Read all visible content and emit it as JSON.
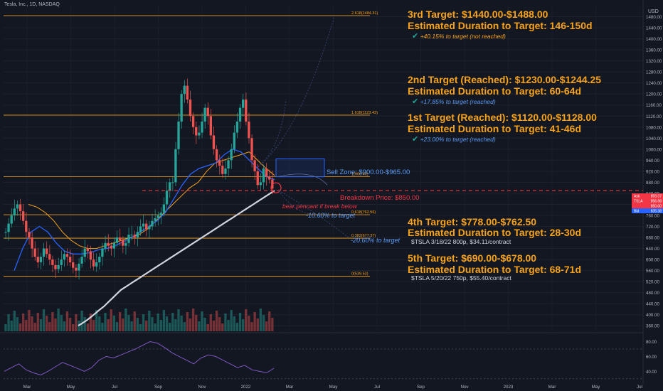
{
  "header": {
    "symbol_title": "Tesla, Inc., 1D, NASDAQ",
    "currency": "USD"
  },
  "colors": {
    "background": "#131722",
    "fib": "#f7a21b",
    "target_text": "#f7a21b",
    "check": "#26a69a",
    "sma_white": "#d1d4dc",
    "sma_blue": "#2962ff",
    "sma_orange": "#f7a21b",
    "breakdown": "#f23645",
    "sell_zone": "#2962ff",
    "rsi": "#7e57c2",
    "up": "#26a69a",
    "down": "#ef5350"
  },
  "annotations": {
    "target3_title": "3rd Target: $1440.00-$1488.00",
    "target3_duration": "Estimated Duration to Target: 146-150d",
    "target3_note": "+40.15% to target (not reached)",
    "target2_title": "2nd Target (Reached): $1230.00-$1244.25",
    "target2_duration": "Estimated Duration to Target: 60-64d",
    "target2_note": "+17.85% to target (reached)",
    "target1_title": "1st Target (Reached): $1120.00-$1128.00",
    "target1_duration": "Estimated Duration to Target: 41-46d",
    "target1_note": "+23.00% to target (reached)",
    "sell_zone": "Sell Zone: $900.00-$965.00",
    "breakdown_price": "Breakdown Price: $850.00",
    "bear_pennant": "bear pennant if break below",
    "pct_down_1": "-10.60% to target",
    "pct_down_2": "-20.60% to target",
    "target4_title": "4th Target: $778.00-$762.50",
    "target4_duration": "Estimated Duration to Target: 28-30d",
    "target4_option": "$TSLA 3/18/22 800p, $34.11/contract",
    "target5_title": "5th Target: $690.00-$678.00",
    "target5_duration": "Estimated Duration to Target: 68-71d",
    "target5_option": "$TSLA 5/20/22 750p, $55.40/contract",
    "check_glyph": "✔"
  },
  "chart_data": {
    "type": "candlestick",
    "y_axis": {
      "range": [
        340,
        1520
      ],
      "ticks": [
        360,
        400,
        440,
        480,
        520,
        560,
        600,
        640,
        680,
        720,
        760,
        800,
        840,
        880,
        920,
        960,
        1000,
        1040,
        1080,
        1120,
        1160,
        1200,
        1240,
        1280,
        1320,
        1360,
        1400,
        1440,
        1480
      ],
      "tick_labels": [
        "360.00",
        "400.00",
        "440.00",
        "480.00",
        "520.00",
        "560.00",
        "600.00",
        "640.00",
        "680.00",
        "720.00",
        "760.00",
        "800.00",
        "840.00",
        "880.00",
        "920.00",
        "960.00",
        "1000.00",
        "1040.00",
        "1080.00",
        "1120.00",
        "1160.00",
        "1200.00",
        "1240.00",
        "1280.00",
        "1320.00",
        "1360.00",
        "1400.00",
        "1440.00",
        "1480.00"
      ]
    },
    "x_axis": {
      "labels": [
        "Mar",
        "May",
        "Jul",
        "Sep",
        "Nov",
        "2022",
        "Mar",
        "May",
        "Jul",
        "Sep",
        "Nov",
        "2023",
        "Mar",
        "May",
        "Jul"
      ]
    },
    "fib_levels": [
      {
        "label": "2.618(1484.31)",
        "value": 1484.31
      },
      {
        "label": "1.618(1123.43)",
        "value": 1123.43
      },
      {
        "label": "1(900.40)",
        "value": 900.4
      },
      {
        "label": "0.618(762.56)",
        "value": 762.56
      },
      {
        "label": "0.382(677.37)",
        "value": 677.37
      },
      {
        "label": "0(539.53)",
        "value": 539.53
      }
    ],
    "price_tags": [
      {
        "label": "Ask",
        "value": "859.37"
      },
      {
        "label": "TSLA",
        "value": "856.98"
      },
      {
        "label": "",
        "value": "850.00"
      },
      {
        "label": "Bid",
        "value": "835.38"
      }
    ],
    "prices": [
      700,
      730,
      760,
      785,
      800,
      775,
      740,
      700,
      680,
      640,
      610,
      590,
      610,
      640,
      620,
      600,
      580,
      565,
      580,
      600,
      620,
      610,
      590,
      570,
      560,
      585,
      610,
      640,
      630,
      600,
      575,
      590,
      610,
      640,
      660,
      650,
      640,
      660,
      680,
      670,
      650,
      660,
      690,
      690,
      680,
      700,
      720,
      730,
      710,
      720,
      740,
      750,
      760,
      770,
      800,
      850,
      880,
      880,
      1000,
      1100,
      1200,
      1230,
      1180,
      1120,
      1080,
      1050,
      1060,
      1100,
      1150,
      1120,
      1050,
      1000,
      960,
      940,
      910,
      930,
      960,
      1000,
      1060,
      1100,
      1150,
      1180,
      1100,
      1040,
      960,
      920,
      870,
      880,
      930,
      900,
      890,
      856.98
    ],
    "sma_white": [
      360,
      370,
      380,
      392,
      405,
      418,
      430,
      445,
      460,
      475,
      490,
      500,
      510,
      520,
      530,
      540,
      550,
      560,
      570,
      580,
      590,
      600,
      610,
      620,
      630,
      640,
      650,
      660,
      670,
      680,
      690,
      700,
      710,
      720,
      730,
      740,
      750,
      760,
      770,
      780,
      790,
      800,
      810,
      820,
      830,
      840,
      850
    ],
    "sma_blue": [
      560,
      640,
      700,
      720,
      700,
      660,
      630,
      620,
      620,
      625,
      635,
      640,
      650,
      665,
      680,
      700,
      720,
      740,
      770,
      820,
      870,
      910,
      930,
      940,
      950,
      980,
      1000,
      990,
      960,
      930,
      900,
      890
    ],
    "sma_orange": [
      800,
      790,
      770,
      740,
      700,
      670,
      650,
      640,
      640,
      650,
      660,
      670,
      680,
      690,
      710,
      740,
      770,
      800,
      830,
      860,
      880,
      920,
      950,
      960,
      970,
      980,
      990,
      960,
      930,
      905
    ],
    "rsi": {
      "levels": [
        30,
        70
      ],
      "tick_labels": [
        "40.00",
        "60.00",
        "80.00"
      ],
      "values": [
        40,
        45,
        50,
        42,
        38,
        35,
        40,
        46,
        52,
        48,
        44,
        40,
        45,
        55,
        60,
        58,
        62,
        66,
        70,
        75,
        80,
        78,
        72,
        65,
        60,
        55,
        50,
        58,
        62,
        60,
        55,
        50,
        45,
        48,
        42,
        40,
        38,
        44
      ]
    }
  }
}
